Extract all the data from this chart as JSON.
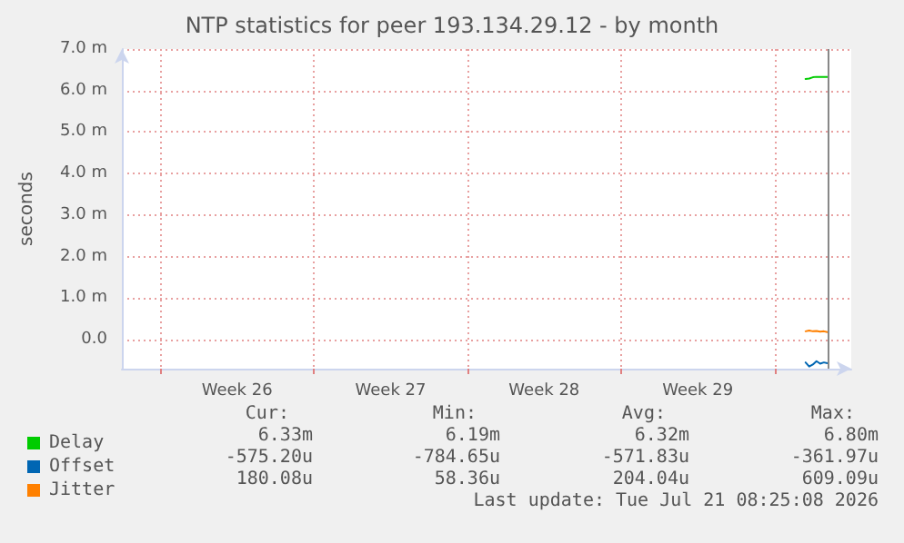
{
  "chart_data": {
    "type": "line",
    "title": "NTP statistics for peer 193.134.29.12 - by month",
    "ylabel": "seconds",
    "x": [
      "2026-07-20T10:00",
      "2026-07-20T14:00",
      "2026-07-20T18:00",
      "2026-07-20T22:00",
      "2026-07-21T02:00",
      "2026-07-21T06:00",
      "2026-07-21T10:00"
    ],
    "series": [
      {
        "name": "Delay",
        "color": "#00cc00",
        "values": [
          6.28,
          6.29,
          6.32,
          6.33,
          6.33,
          6.33,
          6.33
        ]
      },
      {
        "name": "Offset",
        "color": "#0066b3",
        "values": [
          -0.55,
          -0.65,
          -0.6,
          -0.52,
          -0.58,
          -0.55,
          -0.57
        ]
      },
      {
        "name": "Jitter",
        "color": "#ff8000",
        "values": [
          0.2,
          0.22,
          0.2,
          0.21,
          0.19,
          0.2,
          0.18
        ]
      }
    ],
    "xlim": [
      "2026-06-19T06:00",
      "2026-07-22T12:00"
    ],
    "xticks": [
      {
        "value": "2026-06-21T00:00",
        "label": null
      },
      {
        "value": "2026-06-24T12:00",
        "label": "Week 26"
      },
      {
        "value": "2026-06-28T00:00",
        "label": null
      },
      {
        "value": "2026-07-01T12:00",
        "label": "Week 27"
      },
      {
        "value": "2026-07-05T00:00",
        "label": null
      },
      {
        "value": "2026-07-08T12:00",
        "label": "Week 28"
      },
      {
        "value": "2026-07-12T00:00",
        "label": null
      },
      {
        "value": "2026-07-15T12:00",
        "label": "Week 29"
      },
      {
        "value": "2026-07-19T00:00",
        "label": null
      }
    ],
    "ylim": [
      -0.7,
      7
    ],
    "yticks": [
      {
        "value": 0,
        "label": "0.0"
      },
      {
        "value": 1,
        "label": "1.0 m"
      },
      {
        "value": 2,
        "label": "2.0 m"
      },
      {
        "value": 3,
        "label": "3.0 m"
      },
      {
        "value": 4,
        "label": "4.0 m"
      },
      {
        "value": 5,
        "label": "5.0 m"
      },
      {
        "value": 6,
        "label": "6.0 m"
      },
      {
        "value": 7,
        "label": "7.0 m"
      }
    ],
    "grid": true,
    "legend": "bottom left",
    "marker": "none",
    "line_style": "solid",
    "ref_lines": [
      {
        "axis": "x",
        "value": "2026-07-21T10:00",
        "color": "#888888"
      }
    ],
    "annotations": [
      "Cur:",
      "Min:",
      "Avg:",
      "Max:",
      "6.33m",
      "6.19m",
      "6.32m",
      "6.80m",
      "-575.20u",
      "-784.65u",
      "-571.83u",
      "-361.97u",
      "180.08u",
      "58.36u",
      "204.04u",
      "609.09u",
      "Last update: Tue Jul 21 08:25:08 2026"
    ]
  }
}
